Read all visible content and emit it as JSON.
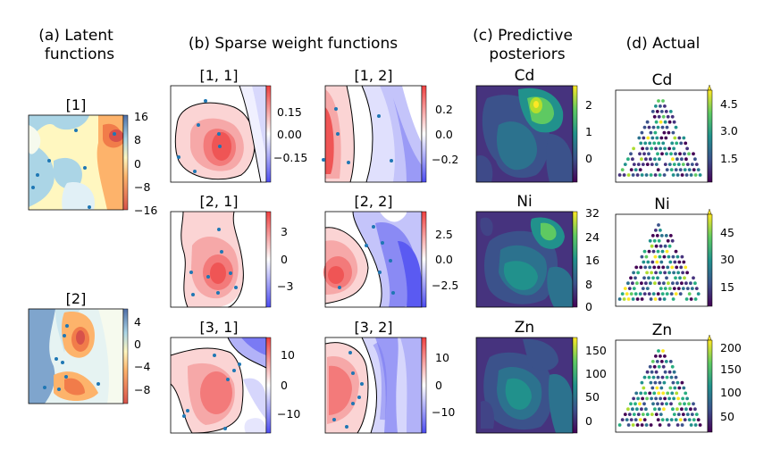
{
  "headers": {
    "a": [
      "(a) Latent",
      "functions"
    ],
    "b": [
      "(b) Sparse weight functions"
    ],
    "c": [
      "(c) Predictive",
      "posteriors"
    ],
    "d": [
      "(d) Actual"
    ]
  },
  "colors": {
    "red": "#e8413d",
    "blue": "#5a5af2",
    "cool_lo": "#4e6fa8",
    "warm_hi": "#d7514a",
    "viridis_lo": "#440154",
    "viridis_hi": "#fde725",
    "point": "#1f77b4"
  },
  "chart_data": [
    {
      "type": "heatmap",
      "panel": "a",
      "title": "[1]",
      "cmap": "RdYlBu_r",
      "colorbar_ticks": [
        "16",
        "8",
        "0",
        "−8",
        "−16"
      ]
    },
    {
      "type": "heatmap",
      "panel": "a",
      "title": "[2]",
      "cmap": "RdYlBu_r",
      "colorbar_ticks": [
        "4",
        "0",
        "−4",
        "−8"
      ]
    },
    {
      "type": "heatmap",
      "panel": "b",
      "title": "[1, 1]",
      "cmap": "bwr",
      "colorbar_ticks": [
        "0.15",
        "0.00",
        "−0.15"
      ]
    },
    {
      "type": "heatmap",
      "panel": "b",
      "title": "[1, 2]",
      "cmap": "bwr",
      "colorbar_ticks": [
        "0.2",
        "0.0",
        "−0.2"
      ]
    },
    {
      "type": "heatmap",
      "panel": "b",
      "title": "[2, 1]",
      "cmap": "bwr",
      "colorbar_ticks": [
        "3",
        "0",
        "−3"
      ]
    },
    {
      "type": "heatmap",
      "panel": "b",
      "title": "[2, 2]",
      "cmap": "bwr",
      "colorbar_ticks": [
        "2.5",
        "0.0",
        "−2.5"
      ]
    },
    {
      "type": "heatmap",
      "panel": "b",
      "title": "[3, 1]",
      "cmap": "bwr",
      "colorbar_ticks": [
        "10",
        "0",
        "−10"
      ]
    },
    {
      "type": "heatmap",
      "panel": "b",
      "title": "[3, 2]",
      "cmap": "bwr",
      "colorbar_ticks": [
        "10",
        "0",
        "−10"
      ]
    },
    {
      "type": "heatmap",
      "panel": "c",
      "title": "Cd",
      "cmap": "viridis",
      "colorbar_ticks": [
        "2",
        "1",
        "0"
      ]
    },
    {
      "type": "heatmap",
      "panel": "c",
      "title": "Ni",
      "cmap": "viridis",
      "colorbar_ticks": [
        "32",
        "24",
        "16",
        "8",
        "0"
      ]
    },
    {
      "type": "heatmap",
      "panel": "c",
      "title": "Zn",
      "cmap": "viridis",
      "colorbar_ticks": [
        "150",
        "100",
        "50",
        "0"
      ]
    },
    {
      "type": "scatter",
      "panel": "d",
      "title": "Cd",
      "cmap": "viridis",
      "colorbar_ticks": [
        "4.5",
        "3.0",
        "1.5"
      ]
    },
    {
      "type": "scatter",
      "panel": "d",
      "title": "Ni",
      "cmap": "viridis",
      "colorbar_ticks": [
        "45",
        "30",
        "15"
      ]
    },
    {
      "type": "scatter",
      "panel": "d",
      "title": "Zn",
      "cmap": "viridis",
      "colorbar_ticks": [
        "200",
        "150",
        "100",
        "50"
      ]
    }
  ]
}
